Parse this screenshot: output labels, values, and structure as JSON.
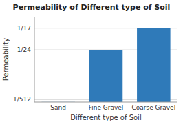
{
  "chart_data": {
    "type": "bar",
    "title": "Permeability of Different type of Soil",
    "xlabel": "Different type of Soil",
    "ylabel": "Permeability",
    "categories": [
      "Sand",
      "Fine Gravel",
      "Coarse Gravel"
    ],
    "values": [
      0.0001,
      0.04167,
      0.05882
    ],
    "color": "#2f7ab9",
    "ylim": [
      0,
      0.068
    ],
    "yticks": [
      {
        "value": 0.05882,
        "label": "1/17"
      },
      {
        "value": 0.04167,
        "label": "1/24"
      },
      {
        "value": 0.001953,
        "label": "1/512"
      }
    ],
    "grid": true
  }
}
